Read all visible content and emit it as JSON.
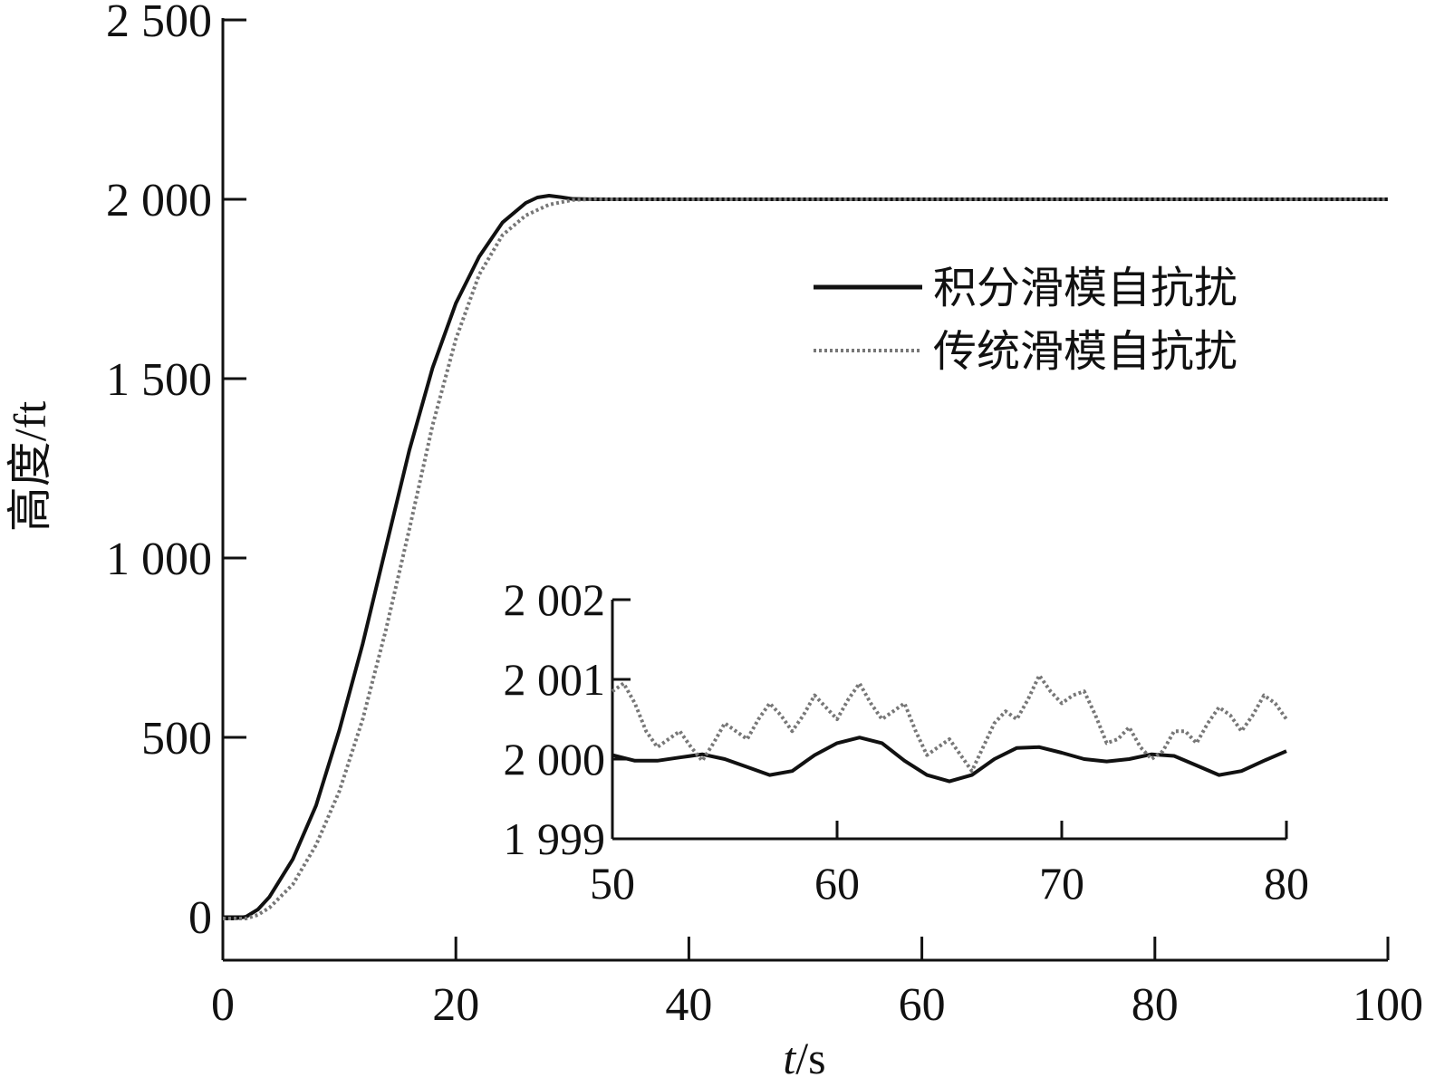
{
  "chart_data": [
    {
      "type": "line",
      "title": "",
      "xlabel_italic": "t",
      "xlabel_unit": "/s",
      "ylabel": "高度/ft",
      "xlim": [
        0,
        100
      ],
      "ylim": [
        -80,
        2500
      ],
      "x_ticks": [
        0,
        20,
        40,
        60,
        80,
        100
      ],
      "x_tick_labels": [
        "0",
        "20",
        "40",
        "60",
        "80",
        "100"
      ],
      "y_ticks": [
        0,
        500,
        1000,
        1500,
        2000,
        2500
      ],
      "y_tick_labels": [
        "0",
        "500",
        "1 000",
        "1 500",
        "2 000",
        "2 500"
      ],
      "grid": false,
      "legend_position": "upper-right",
      "series": [
        {
          "name": "积分滑模自抗扰",
          "style": "solid",
          "color": "#111111",
          "x": [
            0,
            1,
            2,
            3,
            4,
            6,
            8,
            10,
            12,
            14,
            16,
            18,
            20,
            22,
            24,
            26,
            27,
            28,
            29,
            30,
            32,
            35,
            40,
            50,
            60,
            70,
            80,
            90,
            100
          ],
          "y": [
            -5,
            -5,
            0,
            20,
            55,
            160,
            310,
            520,
            760,
            1030,
            1300,
            1530,
            1710,
            1840,
            1935,
            1990,
            2005,
            2010,
            2006,
            2001,
            2000,
            2000,
            2000,
            2000,
            2000,
            2000,
            2000,
            2000,
            2000
          ]
        },
        {
          "name": "传统滑模自抗扰",
          "style": "dotted",
          "color": "#777777",
          "x": [
            0,
            1,
            2,
            3,
            4,
            6,
            8,
            10,
            12,
            14,
            16,
            18,
            20,
            22,
            24,
            26,
            28,
            30,
            32,
            33,
            35,
            40,
            50,
            60,
            70,
            80,
            90,
            100
          ],
          "y": [
            -5,
            -5,
            -5,
            5,
            25,
            90,
            200,
            350,
            550,
            800,
            1080,
            1370,
            1610,
            1790,
            1900,
            1955,
            1985,
            1998,
            2001,
            2000,
            2000,
            2000,
            2000,
            2000,
            2000,
            2000,
            2000,
            2000
          ]
        }
      ]
    },
    {
      "type": "line",
      "title": "",
      "xlim": [
        50,
        80
      ],
      "ylim": [
        1999,
        2002
      ],
      "x_ticks": [
        50,
        60,
        70,
        80
      ],
      "x_tick_labels": [
        "50",
        "60",
        "70",
        "80"
      ],
      "y_ticks": [
        1999,
        2000,
        2001,
        2002
      ],
      "y_tick_labels": [
        "1 999",
        "2 000",
        "2 001",
        "2 002"
      ],
      "grid": false,
      "series": [
        {
          "name": "积分滑模自抗扰",
          "style": "solid",
          "color": "#111111",
          "x": [
            50,
            51,
            52,
            53,
            54,
            55,
            56,
            57,
            58,
            59,
            60,
            61,
            62,
            63,
            64,
            65,
            66,
            67,
            68,
            69,
            70,
            71,
            72,
            73,
            74,
            75,
            76,
            77,
            78,
            79,
            80
          ],
          "y": [
            2000.05,
            1999.98,
            1999.98,
            2000.02,
            2000.06,
            2000.0,
            1999.9,
            1999.8,
            1999.85,
            2000.05,
            2000.2,
            2000.27,
            2000.2,
            1999.98,
            1999.8,
            1999.72,
            1999.8,
            2000.0,
            2000.14,
            2000.15,
            2000.08,
            2000.0,
            1999.97,
            2000.0,
            2000.06,
            2000.04,
            1999.92,
            1999.8,
            1999.85,
            1999.98,
            2000.1
          ]
        },
        {
          "name": "传统滑模自抗扰",
          "style": "dotted",
          "color": "#777777",
          "x": [
            50,
            50.5,
            51,
            51.5,
            52,
            52.5,
            53,
            53.5,
            54,
            54.5,
            55,
            55.5,
            56,
            56.5,
            57,
            57.5,
            58,
            58.5,
            59,
            59.5,
            60,
            60.5,
            61,
            61.5,
            62,
            62.5,
            63,
            63.5,
            64,
            64.5,
            65,
            65.5,
            66,
            66.5,
            67,
            67.5,
            68,
            68.5,
            69,
            69.5,
            70,
            70.5,
            71,
            71.5,
            72,
            72.5,
            73,
            73.5,
            74,
            74.5,
            75,
            75.5,
            76,
            76.5,
            77,
            77.5,
            78,
            78.5,
            79,
            79.5,
            80
          ],
          "y": [
            2000.85,
            2000.95,
            2000.7,
            2000.35,
            2000.15,
            2000.25,
            2000.35,
            2000.15,
            1999.98,
            2000.2,
            2000.45,
            2000.35,
            2000.25,
            2000.5,
            2000.7,
            2000.55,
            2000.35,
            2000.55,
            2000.8,
            2000.65,
            2000.5,
            2000.75,
            2000.95,
            2000.7,
            2000.5,
            2000.6,
            2000.7,
            2000.35,
            2000.05,
            2000.15,
            2000.25,
            2000.05,
            1999.85,
            2000.15,
            2000.45,
            2000.6,
            2000.5,
            2000.75,
            2001.05,
            2000.85,
            2000.7,
            2000.8,
            2000.85,
            2000.55,
            2000.2,
            2000.25,
            2000.4,
            2000.15,
            2000.0,
            2000.1,
            2000.35,
            2000.35,
            2000.2,
            2000.45,
            2000.65,
            2000.55,
            2000.35,
            2000.55,
            2000.8,
            2000.7,
            2000.5
          ]
        }
      ]
    }
  ]
}
